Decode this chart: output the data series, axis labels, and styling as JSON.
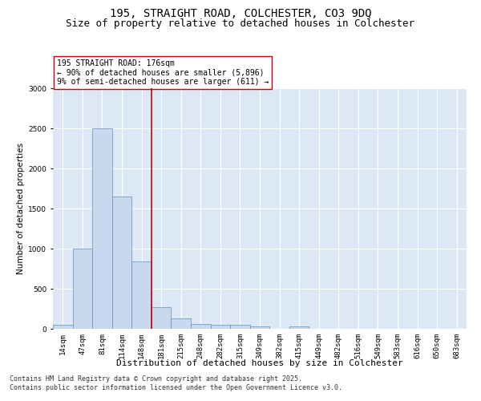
{
  "title_line1": "195, STRAIGHT ROAD, COLCHESTER, CO3 9DQ",
  "title_line2": "Size of property relative to detached houses in Colchester",
  "xlabel": "Distribution of detached houses by size in Colchester",
  "ylabel": "Number of detached properties",
  "categories": [
    "14sqm",
    "47sqm",
    "81sqm",
    "114sqm",
    "148sqm",
    "181sqm",
    "215sqm",
    "248sqm",
    "282sqm",
    "315sqm",
    "349sqm",
    "382sqm",
    "415sqm",
    "449sqm",
    "482sqm",
    "516sqm",
    "549sqm",
    "583sqm",
    "616sqm",
    "650sqm",
    "683sqm"
  ],
  "values": [
    50,
    1000,
    2500,
    1650,
    840,
    270,
    130,
    60,
    55,
    50,
    30,
    0,
    30,
    0,
    0,
    0,
    0,
    0,
    0,
    0,
    0
  ],
  "bar_color": "#c8d8ee",
  "bar_edge_color": "#6090c0",
  "vline_x_idx": 4,
  "vline_color": "#cc0000",
  "annotation_text": "195 STRAIGHT ROAD: 176sqm\n← 90% of detached houses are smaller (5,896)\n9% of semi-detached houses are larger (611) →",
  "annotation_box_color": "#ffffff",
  "annotation_box_edge": "#cc0000",
  "ylim": [
    0,
    3000
  ],
  "yticks": [
    0,
    500,
    1000,
    1500,
    2000,
    2500,
    3000
  ],
  "background_color": "#dce8f5",
  "grid_color": "#ffffff",
  "footer_line1": "Contains HM Land Registry data © Crown copyright and database right 2025.",
  "footer_line2": "Contains public sector information licensed under the Open Government Licence v3.0.",
  "title_fontsize": 10,
  "subtitle_fontsize": 9,
  "axis_label_fontsize": 7.5,
  "tick_fontsize": 6.5,
  "annotation_fontsize": 7,
  "footer_fontsize": 6
}
